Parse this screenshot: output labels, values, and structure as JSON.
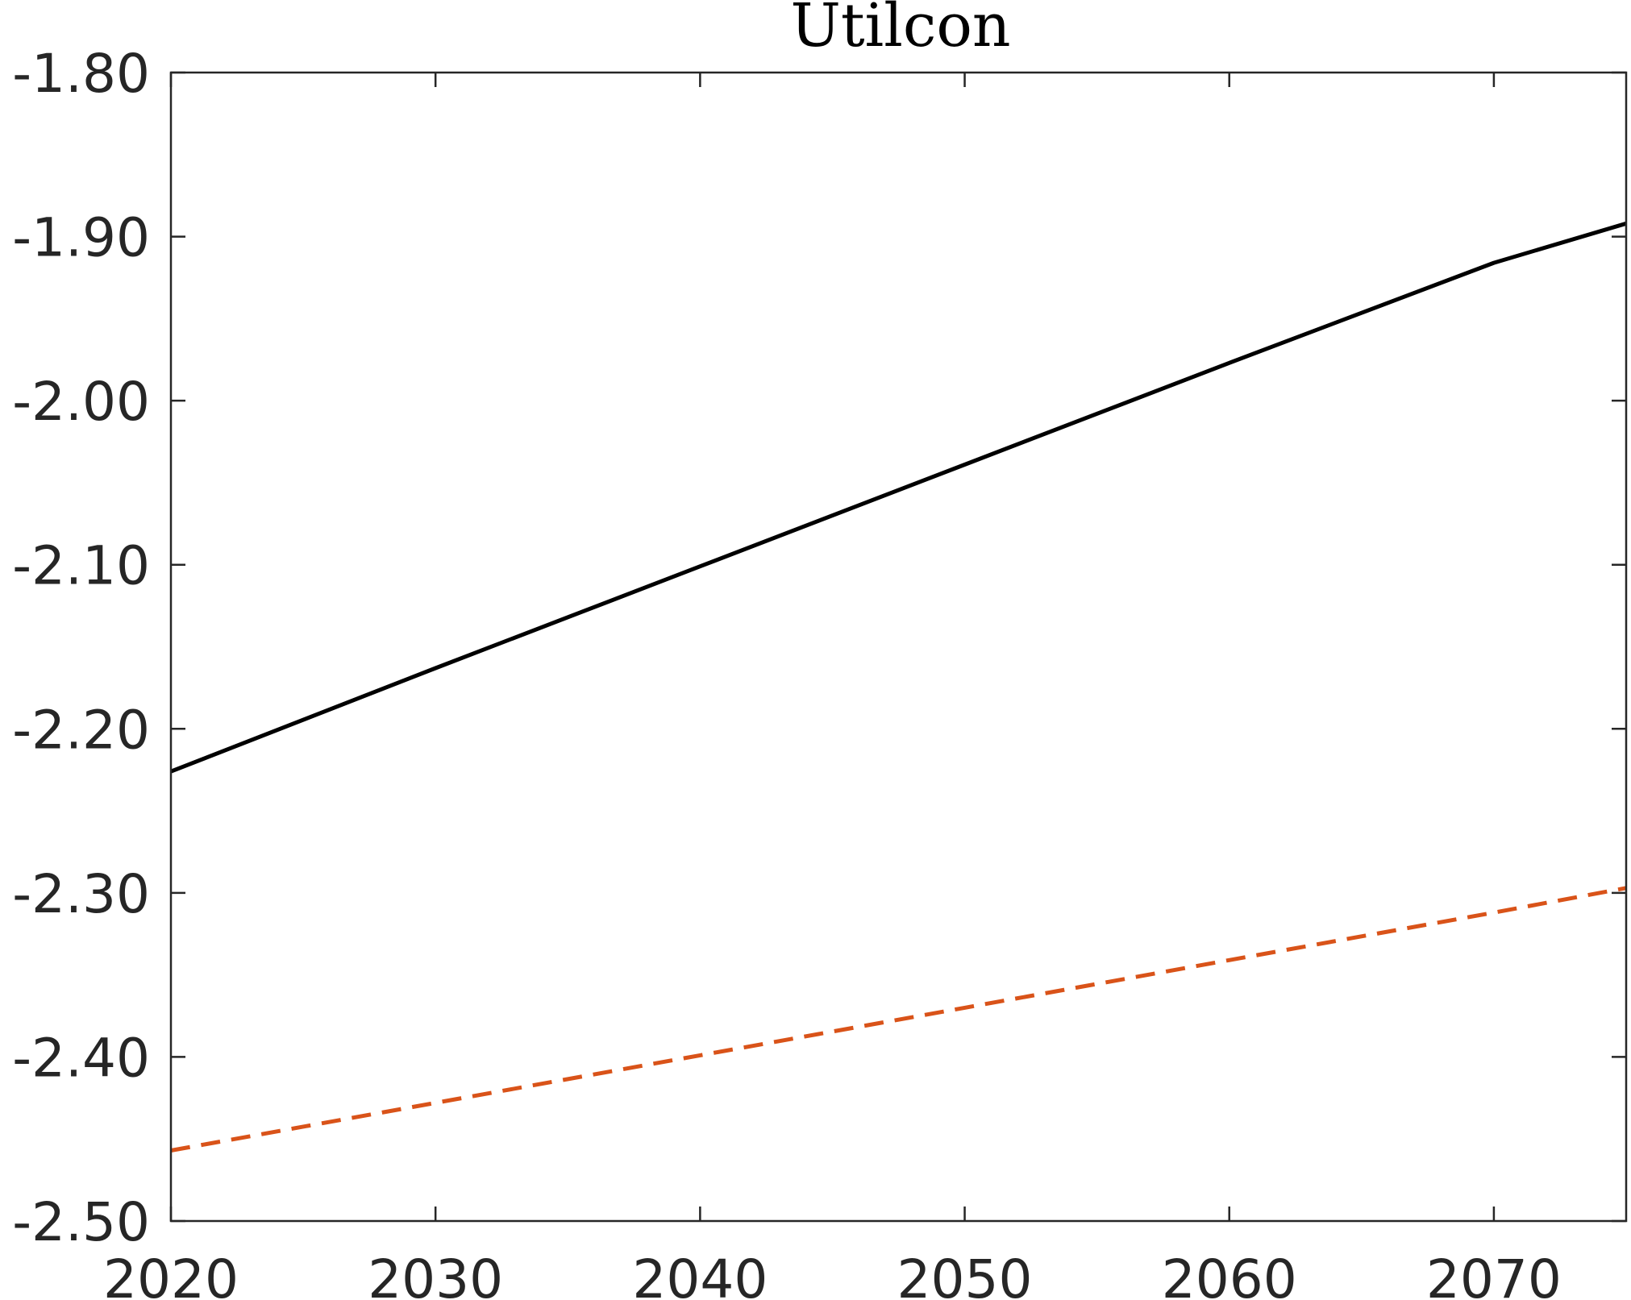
{
  "chart_data": {
    "type": "line",
    "title": "Utilcon",
    "xlabel": "",
    "ylabel": "",
    "xlim": [
      2020,
      2075
    ],
    "ylim": [
      -2.5,
      -1.8
    ],
    "x_ticks": [
      2020,
      2030,
      2040,
      2050,
      2060,
      2070
    ],
    "x_tick_labels": [
      "2020",
      "2030",
      "2040",
      "2050",
      "2060",
      "2070"
    ],
    "y_ticks": [
      -1.8,
      -1.9,
      -2.0,
      -2.1,
      -2.2,
      -2.3,
      -2.4,
      -2.5
    ],
    "y_tick_labels": [
      "-1.80",
      "-1.90",
      "-2.00",
      "-2.10",
      "-2.20",
      "-2.30",
      "-2.40",
      "-2.50"
    ],
    "grid": false,
    "series": [
      {
        "style": "solid",
        "color": "#000000",
        "x": [
          2020,
          2030,
          2040,
          2050,
          2060,
          2070,
          2075
        ],
        "y": [
          -2.226,
          -2.163,
          -2.101,
          -2.039,
          -1.977,
          -1.916,
          -1.892
        ]
      },
      {
        "style": "dashed",
        "color": "#D95319",
        "x": [
          2020,
          2030,
          2040,
          2050,
          2060,
          2070,
          2075
        ],
        "y": [
          -2.457,
          -2.428,
          -2.399,
          -2.37,
          -2.341,
          -2.312,
          -2.297
        ]
      }
    ]
  }
}
